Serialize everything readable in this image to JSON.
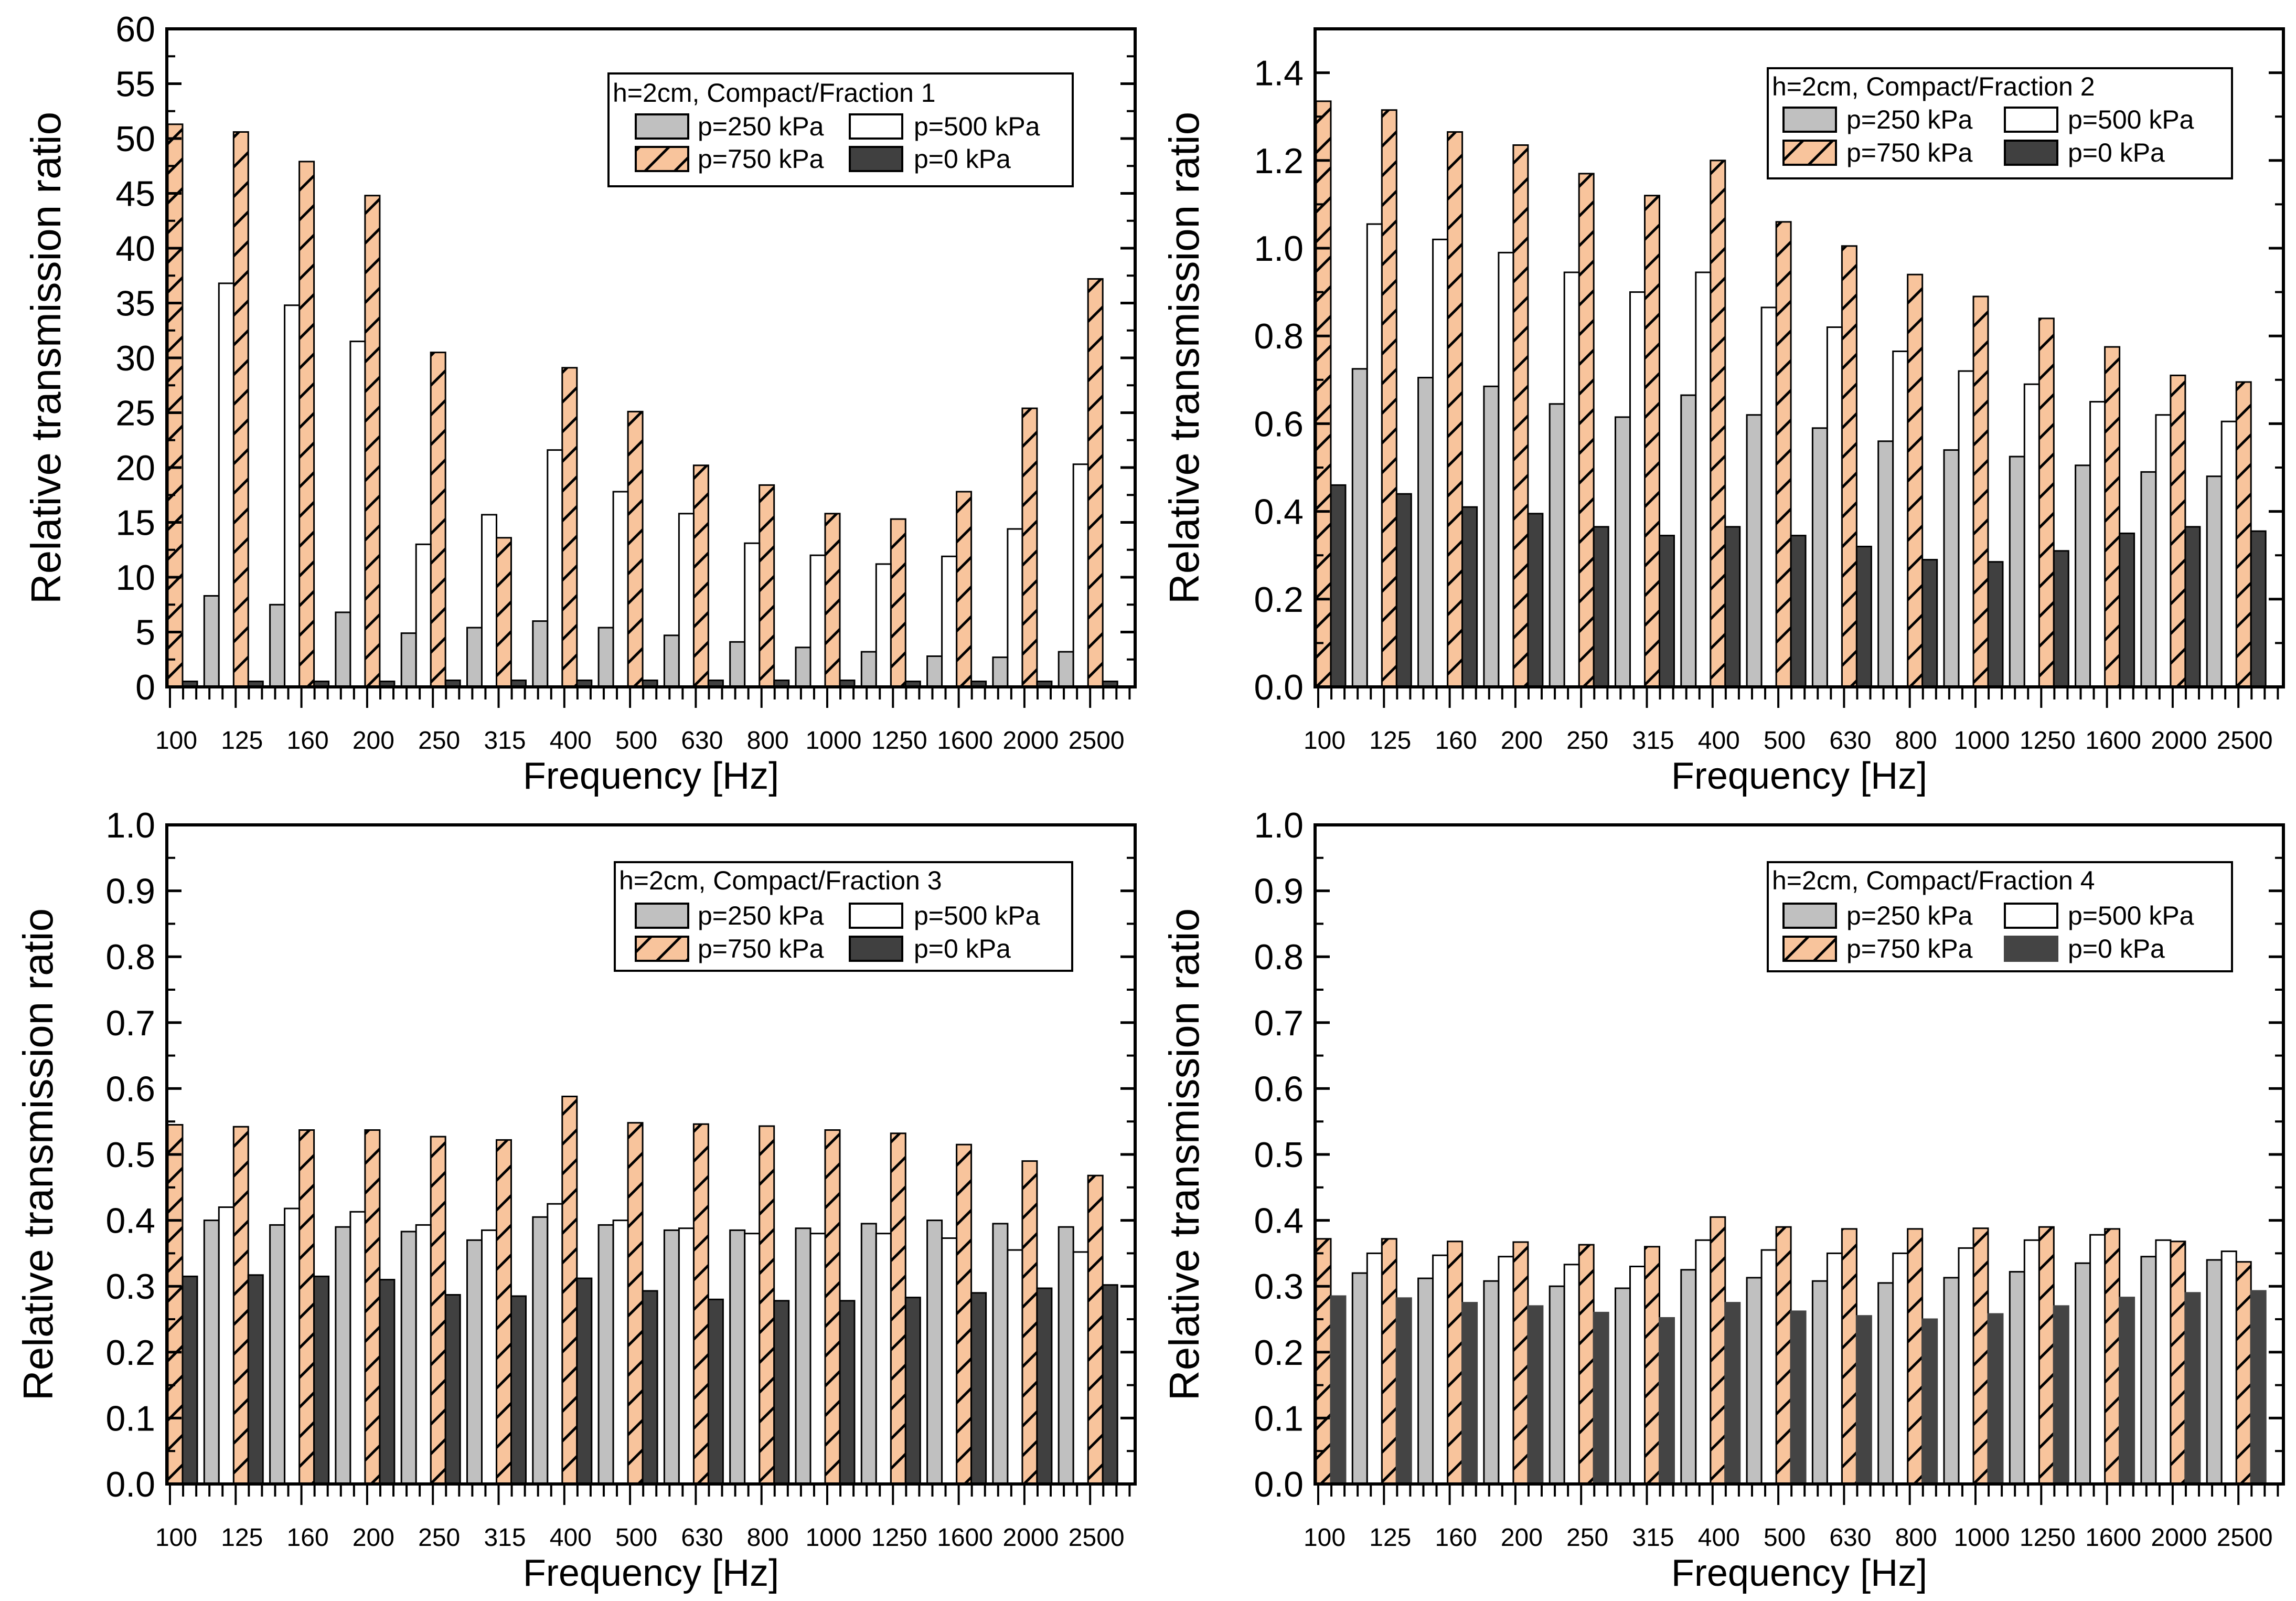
{
  "colors": {
    "p250": "#c0c0c0",
    "p500": "#ffffff",
    "p750": "#f8c49c",
    "p0": "#404040",
    "p0_panel4": "#444444",
    "hatch": "#000000",
    "axis": "#000000"
  },
  "chart_data": [
    {
      "type": "bar",
      "panel": "top-left",
      "categories": [
        "100",
        "125",
        "160",
        "200",
        "250",
        "315",
        "400",
        "500",
        "630",
        "800",
        "1000",
        "1250",
        "1600",
        "2000",
        "2500"
      ],
      "xlabel": "Frequency [Hz]",
      "ylabel": "Relative transmission ratio",
      "ylim": [
        0,
        60
      ],
      "yticks": [
        "0",
        "5",
        "10",
        "15",
        "20",
        "25",
        "30",
        "35",
        "40",
        "45",
        "50",
        "55",
        "60"
      ],
      "ytick_values": [
        0,
        5,
        10,
        15,
        20,
        25,
        30,
        35,
        40,
        45,
        50,
        55,
        60
      ],
      "legend_title": "h=2cm, Compact/Fraction 1",
      "legend_placement": "top-right",
      "series": [
        {
          "key": "p250",
          "name": "p=250 kPa",
          "values": [
            0.0,
            8.3,
            7.5,
            6.8,
            4.9,
            5.4,
            6.0,
            5.4,
            4.7,
            4.1,
            3.6,
            3.2,
            2.8,
            2.7,
            3.2
          ]
        },
        {
          "key": "p500",
          "name": "p=500 kPa",
          "values": [
            0.0,
            36.8,
            34.8,
            31.5,
            13.0,
            15.7,
            21.6,
            17.8,
            15.8,
            13.1,
            12.0,
            11.2,
            11.9,
            14.4,
            20.3
          ]
        },
        {
          "key": "p750",
          "name": "p=750 kPa",
          "values": [
            51.3,
            50.6,
            47.9,
            44.8,
            30.5,
            13.6,
            29.1,
            25.1,
            20.2,
            18.4,
            15.8,
            15.3,
            17.8,
            25.4,
            37.2
          ]
        },
        {
          "key": "p0",
          "name": "p=0 kPa",
          "values": [
            0.5,
            0.5,
            0.5,
            0.5,
            0.6,
            0.6,
            0.6,
            0.6,
            0.6,
            0.6,
            0.6,
            0.5,
            0.5,
            0.5,
            0.5
          ]
        }
      ]
    },
    {
      "type": "bar",
      "panel": "top-right",
      "categories": [
        "100",
        "125",
        "160",
        "200",
        "250",
        "315",
        "400",
        "500",
        "630",
        "800",
        "1000",
        "1250",
        "1600",
        "2000",
        "2500"
      ],
      "xlabel": "Frequency [Hz]",
      "ylabel": "Relative transmission ratio",
      "ylim": [
        0,
        1.5
      ],
      "yticks": [
        "0.0",
        "0.2",
        "0.4",
        "0.6",
        "0.8",
        "1.0",
        "1.2",
        "1.4"
      ],
      "ytick_values": [
        0,
        0.2,
        0.4,
        0.6,
        0.8,
        1.0,
        1.2,
        1.4
      ],
      "legend_title": "h=2cm, Compact/Fraction 2",
      "legend_placement": "top-right",
      "series": [
        {
          "key": "p250",
          "name": "p=250 kPa",
          "values": [
            0.0,
            0.725,
            0.705,
            0.685,
            0.645,
            0.615,
            0.665,
            0.62,
            0.59,
            0.56,
            0.54,
            0.525,
            0.505,
            0.49,
            0.48
          ]
        },
        {
          "key": "p500",
          "name": "p=500 kPa",
          "values": [
            0.0,
            1.055,
            1.02,
            0.99,
            0.945,
            0.9,
            0.945,
            0.865,
            0.82,
            0.765,
            0.72,
            0.69,
            0.65,
            0.62,
            0.605
          ]
        },
        {
          "key": "p750",
          "name": "p=750 kPa",
          "values": [
            1.335,
            1.315,
            1.265,
            1.235,
            1.17,
            1.12,
            1.2,
            1.06,
            1.005,
            0.94,
            0.89,
            0.84,
            0.775,
            0.71,
            0.695
          ]
        },
        {
          "key": "p0",
          "name": "p=0 kPa",
          "values": [
            0.46,
            0.44,
            0.41,
            0.395,
            0.365,
            0.345,
            0.365,
            0.345,
            0.32,
            0.29,
            0.285,
            0.31,
            0.35,
            0.365,
            0.355
          ]
        }
      ]
    },
    {
      "type": "bar",
      "panel": "bottom-left",
      "categories": [
        "100",
        "125",
        "160",
        "200",
        "250",
        "315",
        "400",
        "500",
        "630",
        "800",
        "1000",
        "1250",
        "1600",
        "2000",
        "2500"
      ],
      "xlabel": "Frequency [Hz]",
      "ylabel": "Relative transmission ratio",
      "ylim": [
        0,
        1.0
      ],
      "yticks": [
        "0.0",
        "0.1",
        "0.2",
        "0.3",
        "0.4",
        "0.5",
        "0.6",
        "0.7",
        "0.8",
        "0.9",
        "1.0"
      ],
      "ytick_values": [
        0,
        0.1,
        0.2,
        0.3,
        0.4,
        0.5,
        0.6,
        0.7,
        0.8,
        0.9,
        1.0
      ],
      "legend_title": "h=2cm, Compact/Fraction 3",
      "legend_placement": "top-right",
      "series": [
        {
          "key": "p250",
          "name": "p=250 kPa",
          "values": [
            0.0,
            0.4,
            0.393,
            0.39,
            0.383,
            0.37,
            0.405,
            0.393,
            0.385,
            0.385,
            0.388,
            0.395,
            0.4,
            0.395,
            0.39
          ]
        },
        {
          "key": "p500",
          "name": "p=500 kPa",
          "values": [
            0.0,
            0.42,
            0.418,
            0.413,
            0.393,
            0.385,
            0.425,
            0.4,
            0.388,
            0.38,
            0.38,
            0.38,
            0.373,
            0.355,
            0.352
          ]
        },
        {
          "key": "p750",
          "name": "p=750 kPa",
          "values": [
            0.545,
            0.542,
            0.537,
            0.537,
            0.527,
            0.522,
            0.588,
            0.548,
            0.546,
            0.543,
            0.537,
            0.532,
            0.515,
            0.49,
            0.468
          ]
        },
        {
          "key": "p0",
          "name": "p=0 kPa",
          "values": [
            0.315,
            0.317,
            0.315,
            0.31,
            0.287,
            0.285,
            0.312,
            0.293,
            0.28,
            0.278,
            0.278,
            0.283,
            0.29,
            0.297,
            0.302
          ]
        }
      ]
    },
    {
      "type": "bar",
      "panel": "bottom-right",
      "categories": [
        "100",
        "125",
        "160",
        "200",
        "250",
        "315",
        "400",
        "500",
        "630",
        "800",
        "1000",
        "1250",
        "1600",
        "2000",
        "2500"
      ],
      "xlabel": "Frequency [Hz]",
      "ylabel": "Relative transmission ratio",
      "ylim": [
        0,
        1.0
      ],
      "yticks": [
        "0.0",
        "0.1",
        "0.2",
        "0.3",
        "0.4",
        "0.5",
        "0.6",
        "0.7",
        "0.8",
        "0.9",
        "1.0"
      ],
      "ytick_values": [
        0,
        0.1,
        0.2,
        0.3,
        0.4,
        0.5,
        0.6,
        0.7,
        0.8,
        0.9,
        1.0
      ],
      "legend_title": "h=2cm, Compact/Fraction 4",
      "legend_placement": "top-right",
      "series": [
        {
          "key": "p250",
          "name": "p=250 kPa",
          "values": [
            0.0,
            0.32,
            0.312,
            0.308,
            0.3,
            0.297,
            0.325,
            0.313,
            0.308,
            0.305,
            0.313,
            0.322,
            0.335,
            0.345,
            0.34
          ]
        },
        {
          "key": "p500",
          "name": "p=500 kPa",
          "values": [
            0.0,
            0.35,
            0.347,
            0.345,
            0.333,
            0.33,
            0.37,
            0.355,
            0.35,
            0.35,
            0.358,
            0.37,
            0.378,
            0.37,
            0.353
          ]
        },
        {
          "key": "p750",
          "name": "p=750 kPa",
          "values": [
            0.372,
            0.372,
            0.368,
            0.367,
            0.363,
            0.36,
            0.405,
            0.39,
            0.387,
            0.387,
            0.388,
            0.39,
            0.387,
            0.368,
            0.337
          ]
        },
        {
          "key": "p0",
          "name": "p=0 kPa",
          "values": [
            0.285,
            0.282,
            0.275,
            0.27,
            0.26,
            0.252,
            0.275,
            0.262,
            0.255,
            0.25,
            0.258,
            0.27,
            0.283,
            0.29,
            0.293
          ]
        }
      ]
    }
  ]
}
